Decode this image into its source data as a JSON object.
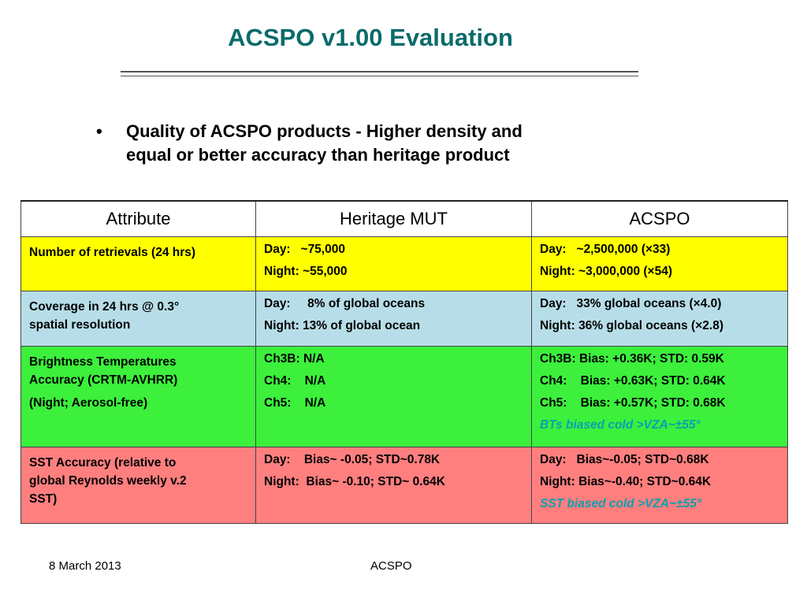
{
  "slide": {
    "title": "ACSPO v1.00 Evaluation",
    "bullet_marker": "•",
    "bullet_line1": "Quality of ACSPO products - Higher density and",
    "bullet_line2": "equal or better accuracy than heritage product"
  },
  "table": {
    "headers": [
      "Attribute",
      "Heritage MUT",
      "ACSPO"
    ],
    "row_colors": [
      "#ffff00",
      "#b7dee8",
      "#3cf03c",
      "#ff7f7f"
    ],
    "rows": [
      {
        "attribute": [
          "Number of retrievals (24 hrs)"
        ],
        "heritage": [
          "Day:   ~75,000",
          "Night: ~55,000"
        ],
        "acspo": [
          "Day:   ~2,500,000 (×33)",
          "Night: ~3,000,000 (×54)"
        ]
      },
      {
        "attribute": [
          "Coverage in 24 hrs @ 0.3°",
          "spatial resolution"
        ],
        "heritage": [
          "Day:     8% of global oceans",
          "Night: 13% of global ocean"
        ],
        "acspo": [
          "Day:   33% global oceans (×4.0)",
          "Night: 36% global oceans (×2.8)"
        ]
      },
      {
        "attribute": [
          "Brightness Temperatures",
          "Accuracy (CRTM-AVHRR)",
          "(Night; Aerosol-free)"
        ],
        "heritage": [
          "Ch3B: N/A",
          "Ch4:    N/A",
          "Ch5:    N/A"
        ],
        "acspo": [
          "Ch3B: Bias: +0.36K; STD: 0.59K",
          "Ch4:    Bias: +0.63K; STD: 0.64K",
          "Ch5:    Bias: +0.57K; STD: 0.68K"
        ],
        "acspo_note": "BTs biased cold >VZA~±55°"
      },
      {
        "attribute": [
          "SST Accuracy (relative to",
          "global Reynolds weekly v.2",
          "SST)"
        ],
        "heritage": [
          "Day:    Bias~ -0.05; STD~0.78K",
          "Night:  Bias~ -0.10; STD~ 0.64K"
        ],
        "acspo": [
          "Day:   Bias~-0.05; STD~0.68K",
          "Night: Bias~-0.40; STD~0.64K"
        ],
        "acspo_note": "SST biased cold >VZA~±55°"
      }
    ]
  },
  "footer": {
    "date": "8 March 2013",
    "center": "ACSPO"
  }
}
